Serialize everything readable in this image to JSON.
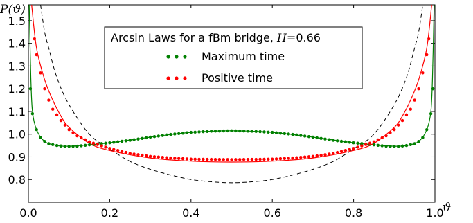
{
  "chart_data": {
    "type": "scatter",
    "ylabel": "P(ϑ)",
    "xlabel": "ϑ",
    "xlim": [
      0.0,
      1.0
    ],
    "ylim": [
      0.7,
      1.57
    ],
    "x_ticks": [
      "0.0",
      "0.2",
      "0.4",
      "0.6",
      "0.8",
      "1.0"
    ],
    "y_ticks": [
      "0.8",
      "0.9",
      "1.0",
      "1.1",
      "1.2",
      "1.3",
      "1.4",
      "1.5"
    ],
    "legend": {
      "title_prefix": "Arcsin Laws for a fBm bridge, ",
      "title_param": "H",
      "title_value": "=0.66",
      "placement": "top-center",
      "entries": [
        {
          "label": "Maximum time",
          "color": "#008000"
        },
        {
          "label": "Positive time",
          "color": "#ff0000"
        }
      ]
    },
    "series": [
      {
        "name": "Maximum time",
        "color": "#008000",
        "points": [
          [
            0.005,
            1.2
          ],
          [
            0.01,
            1.09
          ],
          [
            0.02,
            1.02
          ],
          [
            0.03,
            0.985
          ],
          [
            0.04,
            0.968
          ],
          [
            0.05,
            0.958
          ],
          [
            0.07,
            0.95
          ],
          [
            0.09,
            0.946
          ],
          [
            0.12,
            0.947
          ],
          [
            0.15,
            0.953
          ],
          [
            0.2,
            0.962
          ],
          [
            0.25,
            0.973
          ],
          [
            0.3,
            0.987
          ],
          [
            0.35,
            0.999
          ],
          [
            0.4,
            1.008
          ],
          [
            0.45,
            1.013
          ],
          [
            0.5,
            1.015
          ],
          [
            0.55,
            1.013
          ],
          [
            0.6,
            1.008
          ],
          [
            0.65,
            0.999
          ],
          [
            0.7,
            0.987
          ],
          [
            0.75,
            0.973
          ],
          [
            0.8,
            0.962
          ],
          [
            0.85,
            0.953
          ],
          [
            0.88,
            0.947
          ],
          [
            0.91,
            0.946
          ],
          [
            0.93,
            0.95
          ],
          [
            0.95,
            0.958
          ],
          [
            0.96,
            0.968
          ],
          [
            0.97,
            0.985
          ],
          [
            0.98,
            1.02
          ],
          [
            0.99,
            1.09
          ],
          [
            0.995,
            1.2
          ]
        ],
        "fit_points": [
          [
            0.002,
            1.57
          ],
          [
            0.006,
            1.25
          ],
          [
            0.01,
            1.1
          ],
          [
            0.02,
            1.02
          ],
          [
            0.04,
            0.968
          ],
          [
            0.07,
            0.95
          ],
          [
            0.1,
            0.947
          ],
          [
            0.15,
            0.953
          ],
          [
            0.2,
            0.962
          ],
          [
            0.3,
            0.987
          ],
          [
            0.4,
            1.008
          ],
          [
            0.5,
            1.015
          ],
          [
            0.6,
            1.008
          ],
          [
            0.7,
            0.987
          ],
          [
            0.8,
            0.962
          ],
          [
            0.85,
            0.953
          ],
          [
            0.9,
            0.947
          ],
          [
            0.93,
            0.95
          ],
          [
            0.96,
            0.968
          ],
          [
            0.98,
            1.02
          ],
          [
            0.99,
            1.1
          ],
          [
            0.994,
            1.25
          ],
          [
            0.998,
            1.57
          ]
        ]
      },
      {
        "name": "Positive time",
        "color": "#ff0000",
        "points": [
          [
            0.015,
            1.42
          ],
          [
            0.02,
            1.35
          ],
          [
            0.03,
            1.27
          ],
          [
            0.04,
            1.2
          ],
          [
            0.05,
            1.15
          ],
          [
            0.06,
            1.11
          ],
          [
            0.08,
            1.06
          ],
          [
            0.1,
            1.02
          ],
          [
            0.12,
            0.993
          ],
          [
            0.15,
            0.966
          ],
          [
            0.2,
            0.937
          ],
          [
            0.25,
            0.915
          ],
          [
            0.3,
            0.902
          ],
          [
            0.35,
            0.895
          ],
          [
            0.4,
            0.89
          ],
          [
            0.45,
            0.889
          ],
          [
            0.5,
            0.888
          ],
          [
            0.55,
            0.889
          ],
          [
            0.6,
            0.89
          ],
          [
            0.65,
            0.895
          ],
          [
            0.7,
            0.902
          ],
          [
            0.75,
            0.915
          ],
          [
            0.8,
            0.937
          ],
          [
            0.85,
            0.966
          ],
          [
            0.88,
            0.993
          ],
          [
            0.9,
            1.02
          ],
          [
            0.92,
            1.06
          ],
          [
            0.94,
            1.11
          ],
          [
            0.95,
            1.15
          ],
          [
            0.96,
            1.2
          ],
          [
            0.97,
            1.27
          ],
          [
            0.98,
            1.35
          ],
          [
            0.985,
            1.42
          ]
        ],
        "fit_points": [
          [
            0.008,
            1.57
          ],
          [
            0.02,
            1.38
          ],
          [
            0.04,
            1.24
          ],
          [
            0.06,
            1.15
          ],
          [
            0.08,
            1.08
          ],
          [
            0.1,
            1.03
          ],
          [
            0.15,
            0.96
          ],
          [
            0.2,
            0.928
          ],
          [
            0.3,
            0.895
          ],
          [
            0.4,
            0.881
          ],
          [
            0.5,
            0.877
          ],
          [
            0.6,
            0.881
          ],
          [
            0.7,
            0.895
          ],
          [
            0.8,
            0.928
          ],
          [
            0.85,
            0.96
          ],
          [
            0.9,
            1.03
          ],
          [
            0.92,
            1.08
          ],
          [
            0.94,
            1.15
          ],
          [
            0.96,
            1.24
          ],
          [
            0.98,
            1.38
          ],
          [
            0.992,
            1.57
          ]
        ]
      }
    ],
    "reference_curve": {
      "style": "dashed",
      "color": "#000000",
      "points": [
        [
          0.03,
          1.57
        ],
        [
          0.04,
          1.45
        ],
        [
          0.05,
          1.38
        ],
        [
          0.07,
          1.25
        ],
        [
          0.1,
          1.13
        ],
        [
          0.15,
          1.0
        ],
        [
          0.2,
          0.935
        ],
        [
          0.25,
          0.88
        ],
        [
          0.3,
          0.845
        ],
        [
          0.35,
          0.82
        ],
        [
          0.4,
          0.8
        ],
        [
          0.45,
          0.79
        ],
        [
          0.5,
          0.786
        ],
        [
          0.55,
          0.79
        ],
        [
          0.6,
          0.8
        ],
        [
          0.65,
          0.82
        ],
        [
          0.7,
          0.845
        ],
        [
          0.75,
          0.88
        ],
        [
          0.8,
          0.935
        ],
        [
          0.85,
          1.0
        ],
        [
          0.9,
          1.13
        ],
        [
          0.93,
          1.25
        ],
        [
          0.95,
          1.38
        ],
        [
          0.96,
          1.45
        ],
        [
          0.97,
          1.57
        ]
      ]
    },
    "colors": {
      "maximum": "#008000",
      "positive": "#ff0000",
      "reference": "#000000"
    },
    "grid": false
  }
}
